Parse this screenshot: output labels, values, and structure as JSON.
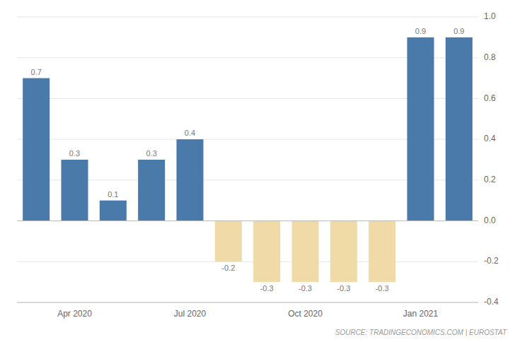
{
  "chart_data": {
    "type": "bar",
    "categories": [
      null,
      "Apr 2020",
      null,
      null,
      "Jul 2020",
      null,
      null,
      "Oct 2020",
      null,
      null,
      "Jan 2021",
      null
    ],
    "values": [
      0.7,
      0.3,
      0.1,
      0.3,
      0.4,
      -0.2,
      -0.3,
      -0.3,
      -0.3,
      -0.3,
      0.9,
      0.9
    ],
    "colors": [
      "#4a7aaa",
      "#4a7aaa",
      "#4a7aaa",
      "#4a7aaa",
      "#4a7aaa",
      "#f0dba8",
      "#f0dba8",
      "#f0dba8",
      "#f0dba8",
      "#f0dba8",
      "#4a7aaa",
      "#4a7aaa"
    ],
    "ylim": [
      -0.4,
      1.0
    ],
    "yticks": [
      -0.4,
      -0.2,
      {
        "value": 0.0,
        "label": "0.0"
      },
      0.2,
      0.4,
      0.6,
      0.8,
      {
        "value": 1.0,
        "label": "1.0"
      }
    ],
    "grid": true,
    "data_labels": true,
    "source": "SOURCE: TRADINGECONOMICS.COM | EUROSTAT"
  }
}
